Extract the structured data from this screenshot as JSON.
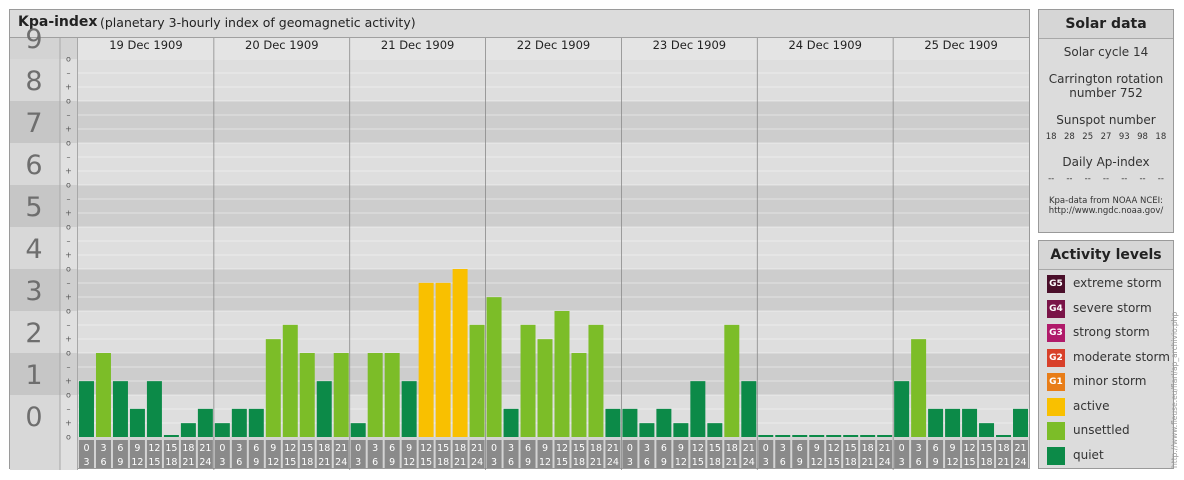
{
  "header": {
    "title": "Kpa-index",
    "subtitle": "(planetary 3-hourly index of geomagnetic activity)"
  },
  "chart_data": {
    "type": "bar",
    "ylim": [
      0,
      9
    ],
    "y_ticks": [
      "0",
      "1",
      "2",
      "3",
      "4",
      "5",
      "6",
      "7",
      "8",
      "9"
    ],
    "minor_tick_labels": [
      "o",
      "+",
      "–"
    ],
    "days": [
      "19 Dec 1909",
      "20 Dec 1909",
      "21 Dec 1909",
      "22 Dec 1909",
      "23 Dec 1909",
      "24 Dec 1909",
      "25 Dec 1909"
    ],
    "hour_bins": [
      {
        "start": "0",
        "end": "3"
      },
      {
        "start": "3",
        "end": "6"
      },
      {
        "start": "6",
        "end": "9"
      },
      {
        "start": "9",
        "end": "12"
      },
      {
        "start": "12",
        "end": "15"
      },
      {
        "start": "15",
        "end": "18"
      },
      {
        "start": "18",
        "end": "21"
      },
      {
        "start": "21",
        "end": "24"
      }
    ],
    "values": [
      1.33,
      2.0,
      1.33,
      0.67,
      1.33,
      0,
      0.33,
      0.67,
      0.33,
      0.67,
      0.67,
      2.33,
      2.67,
      2.0,
      1.33,
      2.0,
      0.33,
      2.0,
      2.0,
      1.33,
      3.67,
      3.67,
      4.0,
      2.67,
      3.33,
      0.67,
      2.67,
      2.33,
      3.0,
      2.0,
      2.67,
      0.67,
      0.67,
      0.33,
      0.67,
      0.33,
      1.33,
      0.33,
      2.67,
      1.33,
      0,
      0,
      0,
      0,
      0,
      0,
      0,
      0,
      1.33,
      2.33,
      0.67,
      0.67,
      0.67,
      0.33,
      0,
      0.67
    ],
    "colors": {
      "quiet": "#0c8a48",
      "unsettled": "#7cbd28",
      "active": "#f9c000"
    },
    "grid": true
  },
  "solar": {
    "title": "Solar data",
    "cycle": "Solar cycle 14",
    "carrington_label": "Carrington rotation",
    "carrington_number": "number 752",
    "sunspot_label": "Sunspot number",
    "sunspots": [
      "18",
      "28",
      "25",
      "27",
      "93",
      "98",
      "18"
    ],
    "ap_label": "Daily Ap-index",
    "ap_values": [
      "--",
      "--",
      "--",
      "--",
      "--",
      "--",
      "--"
    ],
    "source_line1": "Kpa-data from NOAA NCEI:",
    "source_line2": "http://www.ngdc.noaa.gov/"
  },
  "activity_levels": {
    "title": "Activity levels",
    "items": [
      {
        "code": "G5",
        "label": "extreme storm",
        "color": "#4a0f2a"
      },
      {
        "code": "G4",
        "label": "severe storm",
        "color": "#7a1448"
      },
      {
        "code": "G3",
        "label": "strong storm",
        "color": "#b01a6a"
      },
      {
        "code": "G2",
        "label": "moderate storm",
        "color": "#d8402a"
      },
      {
        "code": "G1",
        "label": "minor storm",
        "color": "#e87d18"
      },
      {
        "code": "",
        "label": "active",
        "color": "#f9c000"
      },
      {
        "code": "",
        "label": "unsettled",
        "color": "#7cbd28"
      },
      {
        "code": "",
        "label": "quiet",
        "color": "#0c8a48"
      }
    ]
  },
  "watermark": "http://www.fleuse.eu/flarl/ap_archivio.php"
}
